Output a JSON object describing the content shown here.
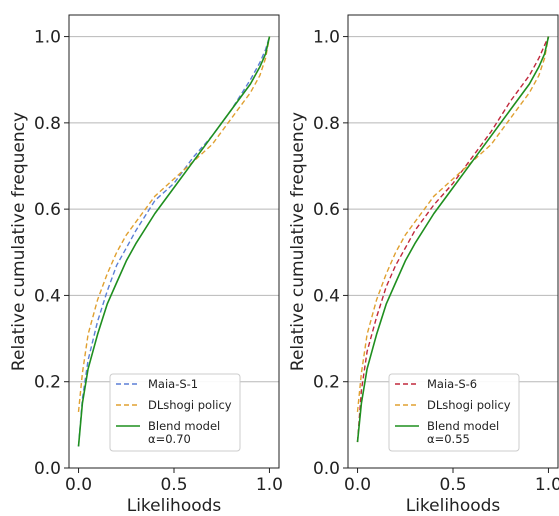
{
  "chart_data": [
    {
      "type": "line",
      "xlabel": "Likelihoods",
      "ylabel": "Relative cumulative frequency",
      "xlim": [
        -0.05,
        1.05
      ],
      "ylim": [
        0.0,
        1.05
      ],
      "xticks": [
        "0.0",
        "0.5",
        "1.0"
      ],
      "yticks": [
        "0.0",
        "0.2",
        "0.4",
        "0.6",
        "0.8",
        "1.0"
      ],
      "grid": "horizontal",
      "legend_position": "lower-right",
      "series": [
        {
          "name": "Maia-S-1",
          "color": "#5b7fd6",
          "style": "dashed",
          "x": [
            0.0,
            0.02,
            0.05,
            0.1,
            0.15,
            0.2,
            0.25,
            0.3,
            0.4,
            0.5,
            0.6,
            0.7,
            0.8,
            0.9,
            0.95,
            0.98,
            1.0
          ],
          "y": [
            0.05,
            0.16,
            0.25,
            0.34,
            0.41,
            0.47,
            0.51,
            0.55,
            0.62,
            0.66,
            0.72,
            0.77,
            0.83,
            0.9,
            0.94,
            0.97,
            1.0
          ]
        },
        {
          "name": "DLshogi policy",
          "color": "#e0a030",
          "style": "dashed",
          "x": [
            0.0,
            0.02,
            0.05,
            0.1,
            0.15,
            0.2,
            0.25,
            0.3,
            0.4,
            0.5,
            0.6,
            0.7,
            0.8,
            0.9,
            0.95,
            0.98,
            1.0
          ],
          "y": [
            0.13,
            0.22,
            0.31,
            0.39,
            0.45,
            0.5,
            0.54,
            0.57,
            0.63,
            0.67,
            0.71,
            0.75,
            0.81,
            0.87,
            0.91,
            0.95,
            1.0
          ]
        },
        {
          "name": "Blend model\nα=0.70",
          "color": "#1f8f1f",
          "style": "solid",
          "x": [
            0.0,
            0.02,
            0.05,
            0.1,
            0.15,
            0.2,
            0.25,
            0.3,
            0.4,
            0.5,
            0.6,
            0.7,
            0.8,
            0.9,
            0.95,
            0.98,
            1.0
          ],
          "y": [
            0.05,
            0.15,
            0.23,
            0.31,
            0.38,
            0.43,
            0.48,
            0.52,
            0.59,
            0.65,
            0.71,
            0.77,
            0.83,
            0.89,
            0.93,
            0.96,
            1.0
          ]
        }
      ]
    },
    {
      "type": "line",
      "xlabel": "Likelihoods",
      "ylabel": "Relative cumulative frequency",
      "xlim": [
        -0.05,
        1.05
      ],
      "ylim": [
        0.0,
        1.05
      ],
      "xticks": [
        "0.0",
        "0.5",
        "1.0"
      ],
      "yticks": [
        "0.0",
        "0.2",
        "0.4",
        "0.6",
        "0.8",
        "1.0"
      ],
      "grid": "horizontal",
      "legend_position": "lower-right",
      "series": [
        {
          "name": "Maia-S-6",
          "color": "#c0283c",
          "style": "dashed",
          "x": [
            0.0,
            0.02,
            0.05,
            0.1,
            0.15,
            0.2,
            0.25,
            0.3,
            0.4,
            0.5,
            0.6,
            0.7,
            0.8,
            0.9,
            0.95,
            0.98,
            1.0
          ],
          "y": [
            0.06,
            0.18,
            0.27,
            0.35,
            0.42,
            0.47,
            0.51,
            0.55,
            0.61,
            0.66,
            0.72,
            0.78,
            0.85,
            0.91,
            0.95,
            0.98,
            1.0
          ]
        },
        {
          "name": "DLshogi policy",
          "color": "#e0a030",
          "style": "dashed",
          "x": [
            0.0,
            0.02,
            0.05,
            0.1,
            0.15,
            0.2,
            0.25,
            0.3,
            0.4,
            0.5,
            0.6,
            0.7,
            0.8,
            0.9,
            0.95,
            0.98,
            1.0
          ],
          "y": [
            0.13,
            0.22,
            0.31,
            0.39,
            0.45,
            0.5,
            0.54,
            0.57,
            0.63,
            0.67,
            0.71,
            0.75,
            0.81,
            0.87,
            0.91,
            0.95,
            1.0
          ]
        },
        {
          "name": "Blend model\nα=0.55",
          "color": "#1f8f1f",
          "style": "solid",
          "x": [
            0.0,
            0.02,
            0.05,
            0.1,
            0.15,
            0.2,
            0.25,
            0.3,
            0.4,
            0.5,
            0.6,
            0.7,
            0.8,
            0.9,
            0.95,
            0.98,
            1.0
          ],
          "y": [
            0.06,
            0.15,
            0.23,
            0.31,
            0.38,
            0.43,
            0.48,
            0.52,
            0.59,
            0.65,
            0.71,
            0.77,
            0.83,
            0.89,
            0.93,
            0.96,
            1.0
          ]
        }
      ]
    }
  ]
}
